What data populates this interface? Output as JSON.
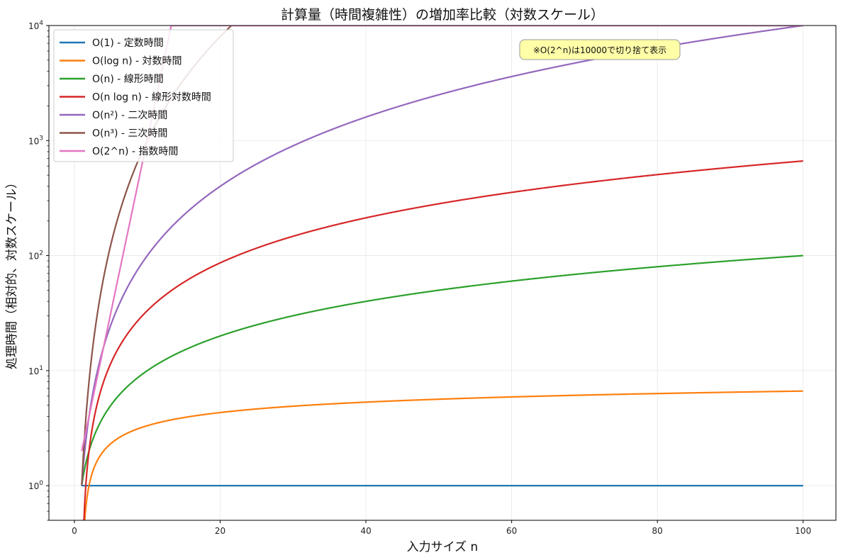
{
  "chart_data": {
    "type": "line",
    "title": "計算量（時間複雑性）の増加率比較（対数スケール）",
    "xlabel": "入力サイズ n",
    "ylabel": "処理時間（相対的、対数スケール）",
    "xlim": [
      -3.5,
      104.5
    ],
    "ylim": [
      0.5,
      10000
    ],
    "yscale": "log",
    "grid": true,
    "legend_position": "top-left",
    "x_ticks": [
      0,
      20,
      40,
      60,
      80,
      100
    ],
    "y_ticks": [
      {
        "value": 1,
        "label_base": "10",
        "label_exp": "0"
      },
      {
        "value": 10,
        "label_base": "10",
        "label_exp": "1"
      },
      {
        "value": 100,
        "label_base": "10",
        "label_exp": "2"
      },
      {
        "value": 1000,
        "label_base": "10",
        "label_exp": "3"
      },
      {
        "value": 10000,
        "label_base": "10",
        "label_exp": "4"
      }
    ],
    "n_range": [
      1,
      100
    ],
    "cap": 10000,
    "series": [
      {
        "name": "O(1) - 定数時間",
        "function": "constant",
        "color": "#1f77b4"
      },
      {
        "name": "O(log n) - 対数時間",
        "function": "log2",
        "color": "#ff7f0e"
      },
      {
        "name": "O(n) - 線形時間",
        "function": "linear",
        "color": "#2ca02c"
      },
      {
        "name": "O(n log n) - 線形対数時間",
        "function": "nlog2n",
        "color": "#d62728"
      },
      {
        "name": "O(n²) - 二次時間",
        "function": "quadratic",
        "color": "#9467bd"
      },
      {
        "name": "O(n³) - 三次時間",
        "function": "cubic",
        "color": "#8c564b"
      },
      {
        "name": "O(2^n) - 指数時間",
        "function": "exponential",
        "color": "#e377c2"
      }
    ],
    "annotation": "※O(2^n)は10000で切り捨て表示"
  }
}
